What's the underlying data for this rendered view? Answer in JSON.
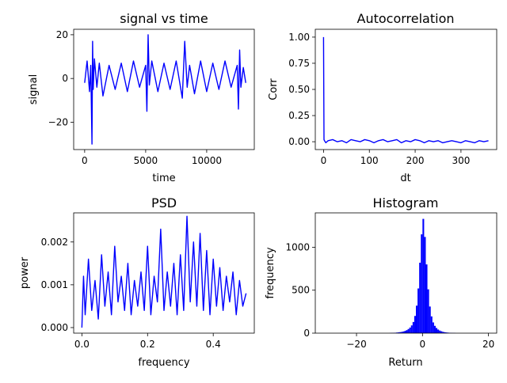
{
  "chart_data": [
    {
      "type": "line",
      "title": "signal vs time",
      "xlabel": "time",
      "ylabel": "signal",
      "xlim": [
        -900,
        13900
      ],
      "ylim": [
        -32.5,
        22.5
      ],
      "xticks": [
        0,
        5000,
        10000
      ],
      "xtick_labels": [
        "0",
        "5000",
        "10000"
      ],
      "yticks": [
        -20,
        0,
        20
      ],
      "ytick_labels": [
        "−20",
        "0",
        "20"
      ],
      "color": "#0000ff",
      "grid": false,
      "series": [
        {
          "x": [
            0,
            200,
            400,
            500,
            600,
            650,
            700,
            800,
            1000,
            1200,
            1500,
            2000,
            2500,
            3000,
            3500,
            4000,
            4500,
            5000,
            5100,
            5200,
            5300,
            5500,
            6000,
            6500,
            7000,
            7500,
            8000,
            8200,
            8400,
            8600,
            9000,
            9500,
            10000,
            10500,
            11000,
            11500,
            12000,
            12500,
            12600,
            12700,
            12800,
            13000,
            13200
          ],
          "y": [
            -2,
            8,
            -6,
            6,
            -30,
            17,
            -5,
            9,
            -4,
            7,
            -8,
            6,
            -5,
            7,
            -6,
            8,
            -4,
            6,
            -15,
            20,
            -3,
            8,
            -6,
            7,
            -5,
            8,
            -9,
            17,
            -4,
            6,
            -7,
            8,
            -6,
            7,
            -5,
            8,
            -4,
            6,
            -14,
            13,
            -4,
            5,
            -2
          ]
        }
      ]
    },
    {
      "type": "line",
      "title": "Autocorrelation",
      "xlabel": "dt",
      "ylabel": "Corr",
      "xlim": [
        -18,
        378
      ],
      "ylim": [
        -0.075,
        1.075
      ],
      "xticks": [
        0,
        100,
        200,
        300
      ],
      "xtick_labels": [
        "0",
        "100",
        "200",
        "300"
      ],
      "yticks": [
        0.0,
        0.25,
        0.5,
        0.75,
        1.0
      ],
      "ytick_labels": [
        "0.00",
        "0.25",
        "0.50",
        "0.75",
        "1.00"
      ],
      "color": "#0000ff",
      "grid": false,
      "series": [
        {
          "x": [
            0,
            1,
            2,
            5,
            10,
            20,
            30,
            40,
            50,
            60,
            70,
            80,
            90,
            100,
            110,
            120,
            130,
            140,
            150,
            160,
            170,
            180,
            190,
            200,
            210,
            220,
            230,
            240,
            250,
            260,
            270,
            280,
            290,
            300,
            310,
            320,
            330,
            340,
            350,
            360
          ],
          "y": [
            1.0,
            0.02,
            0.01,
            -0.01,
            0.01,
            0.02,
            0.0,
            0.01,
            -0.01,
            0.02,
            0.01,
            0.0,
            0.02,
            0.01,
            -0.01,
            0.01,
            0.02,
            0.0,
            0.01,
            0.02,
            -0.01,
            0.01,
            0.0,
            0.02,
            0.01,
            -0.01,
            0.01,
            0.0,
            0.01,
            -0.01,
            0.0,
            0.01,
            0.0,
            -0.01,
            0.01,
            0.0,
            -0.01,
            0.01,
            0.0,
            0.01
          ]
        }
      ]
    },
    {
      "type": "line",
      "title": "PSD",
      "xlabel": "frequency",
      "ylabel": "power",
      "xlim": [
        -0.025,
        0.525
      ],
      "ylim": [
        -0.00013,
        0.00268
      ],
      "xticks": [
        0.0,
        0.2,
        0.4
      ],
      "xtick_labels": [
        "0.0",
        "0.2",
        "0.4"
      ],
      "yticks": [
        0.0,
        0.001,
        0.002
      ],
      "ytick_labels": [
        "0.000",
        "0.001",
        "0.002"
      ],
      "color": "#0000ff",
      "grid": false,
      "series": [
        {
          "x": [
            0.0,
            0.005,
            0.01,
            0.02,
            0.03,
            0.04,
            0.05,
            0.06,
            0.07,
            0.08,
            0.09,
            0.1,
            0.11,
            0.12,
            0.13,
            0.14,
            0.15,
            0.16,
            0.17,
            0.18,
            0.19,
            0.2,
            0.21,
            0.22,
            0.23,
            0.24,
            0.25,
            0.26,
            0.27,
            0.28,
            0.29,
            0.3,
            0.31,
            0.32,
            0.33,
            0.34,
            0.35,
            0.36,
            0.37,
            0.38,
            0.39,
            0.4,
            0.41,
            0.42,
            0.43,
            0.44,
            0.45,
            0.46,
            0.47,
            0.48,
            0.49,
            0.5
          ],
          "y": [
            0.0,
            0.0012,
            0.0003,
            0.0016,
            0.0004,
            0.0011,
            0.0002,
            0.0017,
            0.0005,
            0.0013,
            0.0003,
            0.0019,
            0.0006,
            0.0012,
            0.0004,
            0.0015,
            0.0003,
            0.0011,
            0.0005,
            0.0013,
            0.0004,
            0.0019,
            0.0003,
            0.0012,
            0.0006,
            0.0023,
            0.0004,
            0.0013,
            0.0005,
            0.0015,
            0.0003,
            0.0017,
            0.0004,
            0.0026,
            0.0006,
            0.002,
            0.0005,
            0.0022,
            0.0004,
            0.0018,
            0.0003,
            0.0016,
            0.0005,
            0.0014,
            0.0004,
            0.0012,
            0.0006,
            0.0013,
            0.0003,
            0.0011,
            0.0005,
            0.0008
          ]
        }
      ]
    },
    {
      "type": "bar",
      "title": "Histogram",
      "xlabel": "Return",
      "ylabel": "frequency",
      "xlim": [
        -32.5,
        22.5
      ],
      "ylim": [
        0,
        1400
      ],
      "xticks": [
        -20,
        0,
        20
      ],
      "xtick_labels": [
        "−20",
        "0",
        "20"
      ],
      "yticks": [
        0,
        500,
        1000
      ],
      "ytick_labels": [
        "0",
        "500",
        "1000"
      ],
      "color": "#0000ff",
      "grid": false,
      "bin_width": 0.5,
      "bins": [
        -10,
        -9.5,
        -9,
        -8.5,
        -8,
        -7.5,
        -7,
        -6.5,
        -6,
        -5.5,
        -5,
        -4.5,
        -4,
        -3.5,
        -3,
        -2.5,
        -2,
        -1.5,
        -1,
        -0.5,
        0,
        0.5,
        1,
        1.5,
        2,
        2.5,
        3,
        3.5,
        4,
        4.5,
        5,
        5.5,
        6,
        6.5,
        7,
        7.5,
        8,
        8.5,
        9,
        9.5
      ],
      "values": [
        2,
        3,
        4,
        5,
        7,
        9,
        12,
        15,
        20,
        26,
        35,
        48,
        65,
        90,
        130,
        200,
        320,
        520,
        820,
        1150,
        1330,
        1120,
        800,
        510,
        310,
        195,
        125,
        85,
        60,
        42,
        30,
        22,
        15,
        11,
        8,
        6,
        4,
        3,
        2,
        2
      ]
    }
  ]
}
